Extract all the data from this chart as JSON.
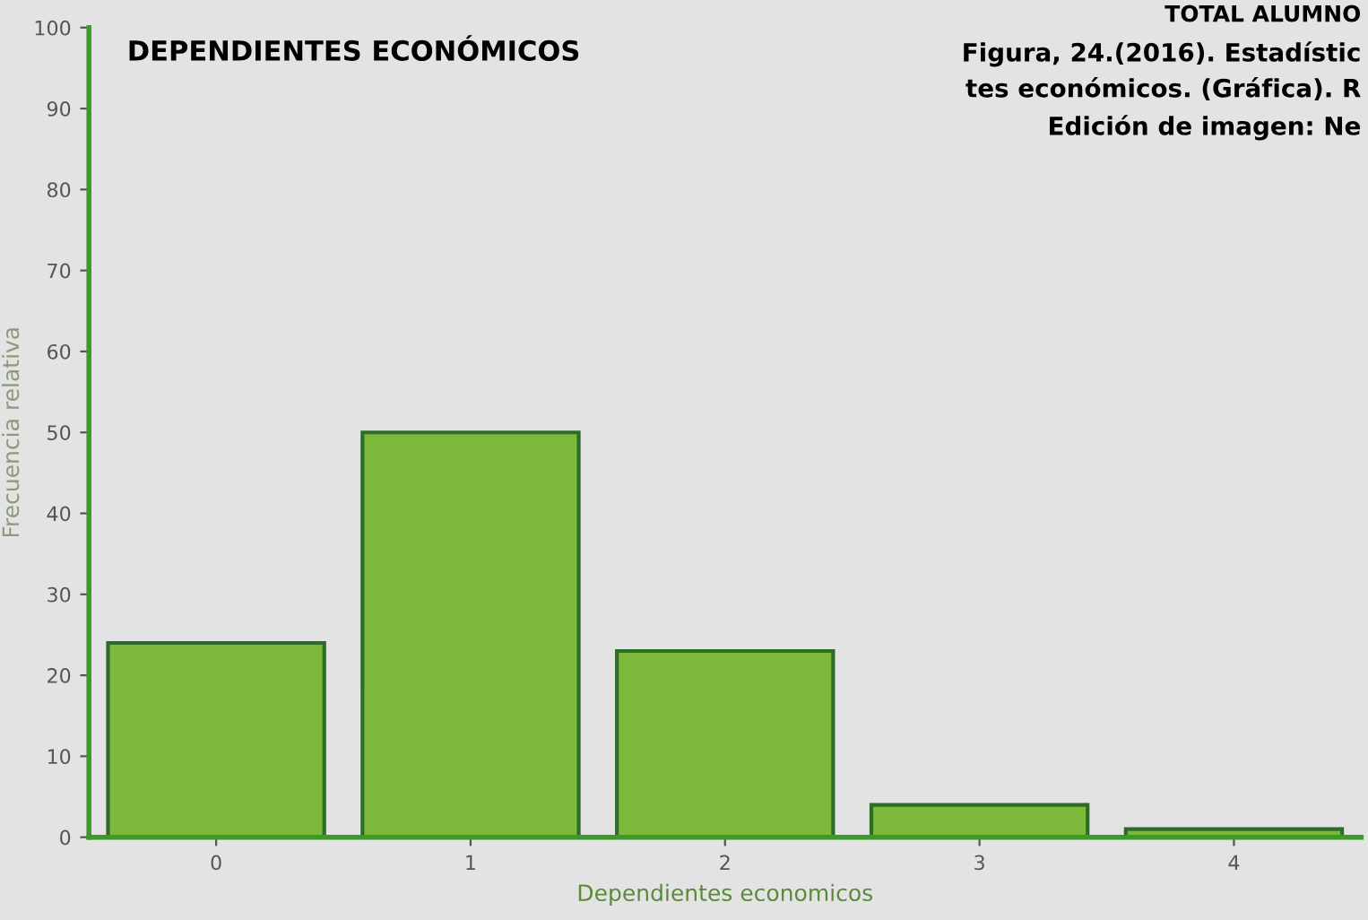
{
  "chart_data": {
    "type": "bar",
    "title": "DEPENDIENTES ECONÓMICOS",
    "xlabel": "Dependientes economicos",
    "ylabel": "Frecuencia relativa",
    "categories": [
      "0",
      "1",
      "2",
      "3",
      "4"
    ],
    "values": [
      24,
      50,
      23,
      4,
      1
    ],
    "color": "#7cb83a",
    "ylim": [
      0,
      100
    ],
    "yticks": [
      0,
      10,
      20,
      30,
      40,
      50,
      60,
      70,
      80,
      90,
      100
    ],
    "grid": false,
    "annotations": [
      "TOTAL ALUMNO",
      "Figura, 24.(2016). Estadístic",
      "tes económicos. (Gráfica). R",
      "Edición de imagen: Ne"
    ]
  }
}
